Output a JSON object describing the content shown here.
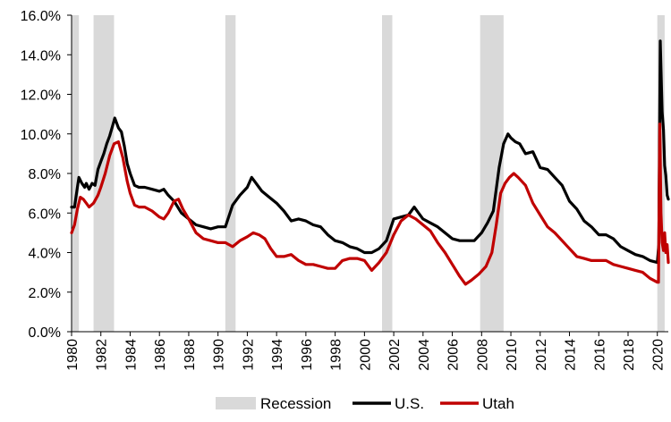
{
  "chart_data": {
    "type": "line",
    "title": "",
    "xlabel": "",
    "ylabel": "",
    "x_range": [
      1980,
      2020.75
    ],
    "ylim": [
      0,
      16
    ],
    "y_ticks": [
      0,
      2,
      4,
      6,
      8,
      10,
      12,
      14,
      16
    ],
    "y_tick_labels": [
      "0.0%",
      "2.0%",
      "4.0%",
      "6.0%",
      "8.0%",
      "10.0%",
      "12.0%",
      "14.0%",
      "16.0%"
    ],
    "x_ticks": [
      1980,
      1982,
      1984,
      1986,
      1988,
      1990,
      1992,
      1994,
      1996,
      1998,
      2000,
      2002,
      2004,
      2006,
      2008,
      2010,
      2012,
      2014,
      2016,
      2018,
      2020
    ],
    "x_tick_labels": [
      "1980",
      "1982",
      "1984",
      "1986",
      "1988",
      "1990",
      "1992",
      "1994",
      "1996",
      "1998",
      "2000",
      "2002",
      "2004",
      "2006",
      "2008",
      "2010",
      "2012",
      "2014",
      "2016",
      "2018",
      "2020"
    ],
    "grid": false,
    "legend_position": "bottom",
    "recessions": {
      "name": "Recession",
      "color": "#d9d9d9",
      "periods": [
        [
          1980.0,
          1980.5
        ],
        [
          1981.5,
          1982.9
        ],
        [
          1990.5,
          1991.2
        ],
        [
          2001.2,
          2001.9
        ],
        [
          2007.9,
          2009.5
        ],
        [
          2020.0,
          2020.5
        ]
      ]
    },
    "series": [
      {
        "name": "U.S.",
        "color": "#000000",
        "x": [
          1980.0,
          1980.2,
          1980.4,
          1980.5,
          1980.7,
          1980.9,
          1981.0,
          1981.2,
          1981.4,
          1981.6,
          1981.8,
          1982.0,
          1982.2,
          1982.4,
          1982.6,
          1982.8,
          1982.95,
          1983.2,
          1983.4,
          1983.6,
          1983.8,
          1984.0,
          1984.3,
          1984.6,
          1985.0,
          1985.5,
          1986.0,
          1986.3,
          1986.6,
          1987.0,
          1987.5,
          1988.0,
          1988.5,
          1989.0,
          1989.5,
          1990.0,
          1990.5,
          1991.0,
          1991.5,
          1992.0,
          1992.3,
          1992.5,
          1992.8,
          1993.0,
          1993.5,
          1994.0,
          1994.5,
          1995.0,
          1995.5,
          1996.0,
          1996.5,
          1997.0,
          1997.5,
          1998.0,
          1998.5,
          1999.0,
          1999.5,
          2000.0,
          2000.5,
          2001.0,
          2001.5,
          2002.0,
          2002.5,
          2003.0,
          2003.4,
          2003.7,
          2004.0,
          2004.5,
          2005.0,
          2005.5,
          2006.0,
          2006.5,
          2007.0,
          2007.5,
          2008.0,
          2008.4,
          2008.8,
          2009.2,
          2009.5,
          2009.8,
          2010.0,
          2010.3,
          2010.6,
          2011.0,
          2011.5,
          2012.0,
          2012.5,
          2013.0,
          2013.5,
          2014.0,
          2014.5,
          2015.0,
          2015.5,
          2016.0,
          2016.5,
          2017.0,
          2017.5,
          2018.0,
          2018.5,
          2019.0,
          2019.5,
          2020.0,
          2020.1,
          2020.2,
          2020.25,
          2020.33,
          2020.42,
          2020.5,
          2020.58,
          2020.67,
          2020.75
        ],
        "values": [
          6.3,
          6.3,
          7.3,
          7.8,
          7.5,
          7.3,
          7.5,
          7.2,
          7.5,
          7.4,
          8.2,
          8.6,
          9.0,
          9.5,
          9.9,
          10.4,
          10.8,
          10.3,
          10.1,
          9.4,
          8.5,
          8.0,
          7.4,
          7.3,
          7.3,
          7.2,
          7.1,
          7.2,
          6.9,
          6.6,
          6.0,
          5.7,
          5.4,
          5.3,
          5.2,
          5.3,
          5.3,
          6.4,
          6.9,
          7.3,
          7.8,
          7.6,
          7.3,
          7.1,
          6.8,
          6.5,
          6.1,
          5.6,
          5.7,
          5.6,
          5.4,
          5.3,
          4.9,
          4.6,
          4.5,
          4.3,
          4.2,
          4.0,
          4.0,
          4.2,
          4.6,
          5.7,
          5.8,
          5.9,
          6.3,
          6.0,
          5.7,
          5.5,
          5.3,
          5.0,
          4.7,
          4.6,
          4.6,
          4.6,
          5.0,
          5.5,
          6.1,
          8.3,
          9.5,
          10.0,
          9.8,
          9.6,
          9.5,
          9.0,
          9.1,
          8.3,
          8.2,
          7.8,
          7.4,
          6.6,
          6.2,
          5.6,
          5.3,
          4.9,
          4.9,
          4.7,
          4.3,
          4.1,
          3.9,
          3.8,
          3.6,
          3.5,
          4.4,
          14.7,
          13.3,
          11.1,
          10.2,
          8.4,
          7.9,
          6.9,
          6.7
        ]
      },
      {
        "name": "Utah",
        "color": "#c00000",
        "x": [
          1980.0,
          1980.2,
          1980.4,
          1980.6,
          1980.8,
          1981.0,
          1981.2,
          1981.5,
          1981.8,
          1982.0,
          1982.3,
          1982.6,
          1982.9,
          1983.2,
          1983.5,
          1983.8,
          1984.0,
          1984.3,
          1984.6,
          1985.0,
          1985.5,
          1986.0,
          1986.3,
          1986.6,
          1987.0,
          1987.3,
          1987.6,
          1988.0,
          1988.5,
          1989.0,
          1989.5,
          1990.0,
          1990.5,
          1991.0,
          1991.5,
          1992.0,
          1992.4,
          1992.8,
          1993.2,
          1993.6,
          1994.0,
          1994.5,
          1995.0,
          1995.5,
          1996.0,
          1996.5,
          1997.0,
          1997.5,
          1998.0,
          1998.5,
          1999.0,
          1999.5,
          2000.0,
          2000.5,
          2001.0,
          2001.5,
          2002.0,
          2002.5,
          2003.0,
          2003.5,
          2004.0,
          2004.5,
          2005.0,
          2005.5,
          2006.0,
          2006.5,
          2006.9,
          2007.3,
          2007.8,
          2008.3,
          2008.7,
          2009.0,
          2009.3,
          2009.6,
          2009.9,
          2010.2,
          2010.5,
          2011.0,
          2011.5,
          2012.0,
          2012.5,
          2013.0,
          2013.5,
          2014.0,
          2014.5,
          2015.0,
          2015.5,
          2016.0,
          2016.5,
          2017.0,
          2017.5,
          2018.0,
          2018.5,
          2019.0,
          2019.5,
          2020.0,
          2020.08,
          2020.17,
          2020.25,
          2020.33,
          2020.42,
          2020.5,
          2020.58,
          2020.67,
          2020.75
        ],
        "values": [
          5.0,
          5.4,
          6.2,
          6.8,
          6.7,
          6.5,
          6.3,
          6.5,
          6.9,
          7.3,
          8.0,
          8.9,
          9.5,
          9.6,
          8.8,
          7.6,
          7.0,
          6.4,
          6.3,
          6.3,
          6.1,
          5.8,
          5.7,
          6.0,
          6.6,
          6.7,
          6.2,
          5.7,
          5.0,
          4.7,
          4.6,
          4.5,
          4.5,
          4.3,
          4.6,
          4.8,
          5.0,
          4.9,
          4.7,
          4.2,
          3.8,
          3.8,
          3.9,
          3.6,
          3.4,
          3.4,
          3.3,
          3.2,
          3.2,
          3.6,
          3.7,
          3.7,
          3.6,
          3.1,
          3.5,
          4.0,
          4.9,
          5.6,
          5.9,
          5.7,
          5.4,
          5.1,
          4.5,
          4.0,
          3.4,
          2.8,
          2.4,
          2.6,
          2.9,
          3.3,
          4.0,
          5.4,
          7.0,
          7.5,
          7.8,
          8.0,
          7.8,
          7.4,
          6.5,
          5.9,
          5.3,
          5.0,
          4.6,
          4.2,
          3.8,
          3.7,
          3.6,
          3.6,
          3.6,
          3.4,
          3.3,
          3.2,
          3.1,
          3.0,
          2.7,
          2.5,
          2.5,
          10.5,
          6.0,
          4.5,
          4.1,
          5.0,
          4.0,
          4.4,
          3.5
        ]
      }
    ]
  }
}
